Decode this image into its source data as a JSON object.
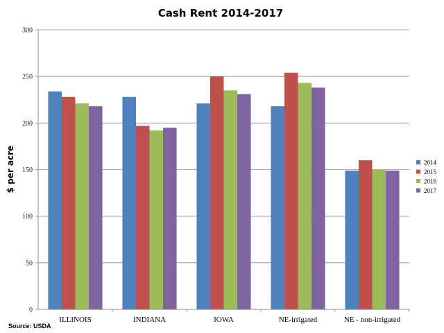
{
  "chart_data": {
    "type": "bar",
    "title": "Cash Rent 2014-2017",
    "ylabel": "$ per acre",
    "xlabel": "",
    "ylim": [
      0,
      300
    ],
    "yticks": [
      0,
      50,
      100,
      150,
      200,
      250,
      300
    ],
    "grid": true,
    "legend_position": "right",
    "categories": [
      "ILLINOIS",
      "INDIANA",
      "IOWA",
      "NE-irrigated",
      "NE - non-irrigated"
    ],
    "series": [
      {
        "name": "2014",
        "color": "#4f81bd",
        "values": [
          234,
          228,
          221,
          218,
          149
        ]
      },
      {
        "name": "2015",
        "color": "#c0504d",
        "values": [
          228,
          197,
          250,
          254,
          160
        ]
      },
      {
        "name": "2016",
        "color": "#9bbb59",
        "values": [
          221,
          192,
          235,
          243,
          150
        ]
      },
      {
        "name": "2017",
        "color": "#8064a2",
        "values": [
          218,
          195,
          231,
          238,
          149
        ]
      }
    ],
    "source": "Source: USDA"
  }
}
